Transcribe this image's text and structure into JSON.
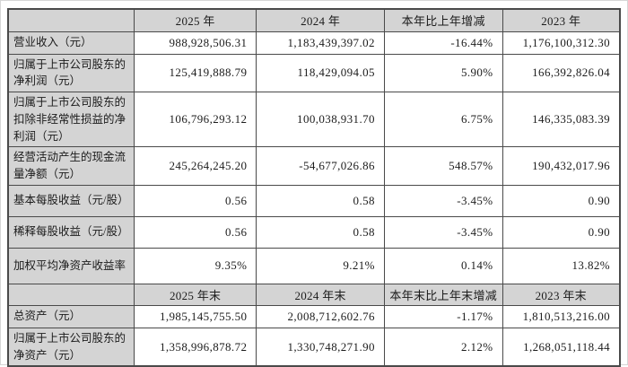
{
  "colors": {
    "header_bg": "#d4d4d4",
    "label_bg": "#d4d4d4",
    "cell_bg": "#ffffff",
    "border": "#4a4a4a",
    "text": "#1c1c1c"
  },
  "section_annual": {
    "header": [
      "",
      "2025 年",
      "2024 年",
      "本年比上年增减",
      "2023 年"
    ],
    "rows": [
      [
        "营业收入（元）",
        "988,928,506.31",
        "1,183,439,397.02",
        "-16.44%",
        "1,176,100,312.30"
      ],
      [
        "归属于上市公司股东的净利润（元）",
        "125,419,888.79",
        "118,429,094.05",
        "5.90%",
        "166,392,826.04"
      ],
      [
        "归属于上市公司股东的扣除非经常性损益的净利润（元）",
        "106,796,293.12",
        "100,038,931.70",
        "6.75%",
        "146,335,083.39"
      ],
      [
        "经营活动产生的现金流量净额（元）",
        "245,264,245.20",
        "-54,677,026.86",
        "548.57%",
        "190,432,017.96"
      ],
      [
        "基本每股收益（元/股）",
        "0.56",
        "0.58",
        "-3.45%",
        "0.90"
      ],
      [
        "稀释每股收益（元/股）",
        "0.56",
        "0.58",
        "-3.45%",
        "0.90"
      ],
      [
        "加权平均净资产收益率",
        "9.35%",
        "9.21%",
        "0.14%",
        "13.82%"
      ]
    ]
  },
  "section_yearend": {
    "header": [
      "",
      "2025 年末",
      "2024 年末",
      "本年末比上年末增减",
      "2023 年末"
    ],
    "rows": [
      [
        "总资产（元）",
        "1,985,145,755.50",
        "2,008,712,602.76",
        "-1.17%",
        "1,810,513,216.00"
      ],
      [
        "归属于上市公司股东的净资产（元）",
        "1,358,996,878.72",
        "1,330,748,271.90",
        "2.12%",
        "1,268,051,118.44"
      ]
    ]
  }
}
